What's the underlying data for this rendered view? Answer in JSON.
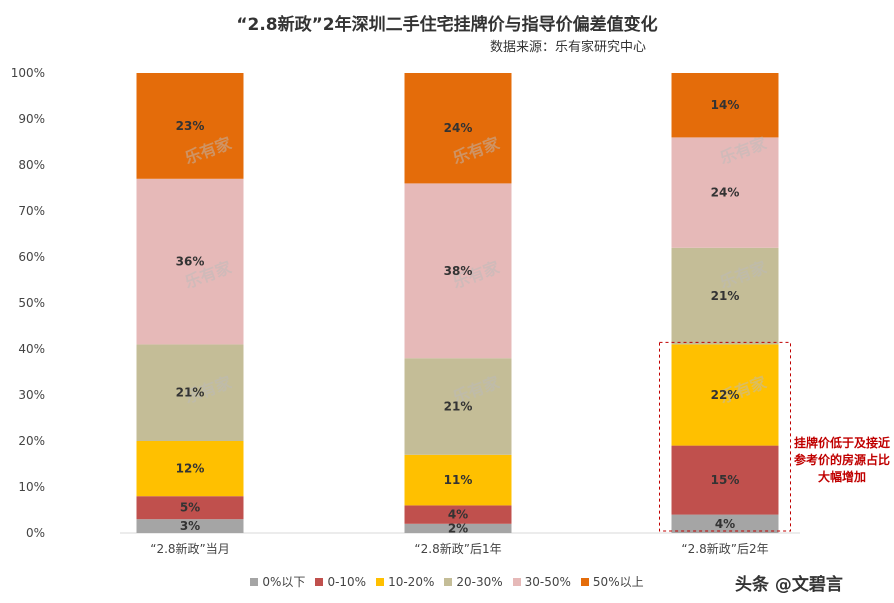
{
  "chart_data": {
    "type": "bar",
    "stacked": true,
    "title": "“2.8新政”2年深圳二手住宅挂牌价与指导价偏差值变化",
    "subtitle": "数据来源：乐有家研究中心",
    "categories": [
      "“2.8新政”当月",
      "“2.8新政”后1年",
      "“2.8新政”后2年"
    ],
    "ylim": [
      0,
      100
    ],
    "yticks": [
      "0%",
      "10%",
      "20%",
      "30%",
      "40%",
      "50%",
      "60%",
      "70%",
      "80%",
      "90%",
      "100%"
    ],
    "series": [
      {
        "name": "0%以下",
        "color": "#a5a5a5",
        "values": [
          3,
          2,
          4
        ]
      },
      {
        "name": "0-10%",
        "color": "#c0504d",
        "values": [
          5,
          4,
          15
        ]
      },
      {
        "name": "10-20%",
        "color": "#ffc000",
        "values": [
          12,
          11,
          22
        ]
      },
      {
        "name": "20-30%",
        "color": "#c4bd97",
        "values": [
          21,
          21,
          21
        ]
      },
      {
        "name": "30-50%",
        "color": "#e6b9b8",
        "values": [
          36,
          38,
          24
        ]
      },
      {
        "name": "50%以上",
        "color": "#e46c0a",
        "values": [
          23,
          24,
          14
        ]
      }
    ],
    "annotation": "挂牌价低于及接近参考价的房源占比大幅增加",
    "legend_position": "bottom",
    "grid": false,
    "watermark": "乐有家"
  },
  "footer": {
    "logo": "头条 @文碧言"
  }
}
